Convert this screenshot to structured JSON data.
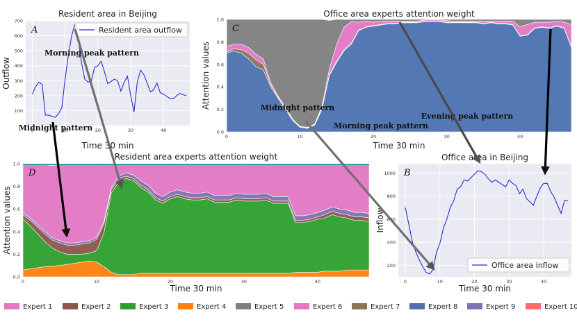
{
  "colors": {
    "expert1": "#e377c2",
    "expert2": "#8c564b",
    "expert3": "#2ca02c",
    "expert4": "#ff7f0e",
    "expert5": "#7f7f7f",
    "expert6": "#e377c2",
    "expert7": "#8c7358",
    "expert8": "#4c72b0",
    "expert9": "#8172b3",
    "expert10": "#ff6b6b",
    "line": "#2b2bd6",
    "panel_bg": "#eaeaf2"
  },
  "legend": {
    "labels": [
      "Expert 1",
      "Expert 2",
      "Expert 3",
      "Expert 4",
      "Expert 5",
      "Expert 6",
      "Expert 7",
      "Expert 8",
      "Expert 9",
      "Expert 10"
    ],
    "color_keys": [
      "expert1",
      "expert2",
      "expert3",
      "expert4",
      "expert5",
      "expert6",
      "expert7",
      "expert8",
      "expert9",
      "expert10"
    ]
  },
  "arrows": [
    {
      "from": "A",
      "to": "D"
    },
    {
      "from": "A",
      "to": "D"
    },
    {
      "from": "C",
      "to": "B"
    },
    {
      "from": "C",
      "to": "B"
    },
    {
      "from": "C",
      "to": "B"
    }
  ],
  "chart_data": [
    {
      "id": "A",
      "type": "line",
      "panel_label": "A",
      "title": "Resident area in Beijing",
      "xlabel": "Time 30 min",
      "ylabel": "Outflow",
      "xlim": [
        -2,
        48
      ],
      "ylim": [
        0,
        700
      ],
      "xticks": [
        0,
        10,
        20,
        30,
        40
      ],
      "yticks": [
        100,
        200,
        300,
        400,
        500,
        600,
        700
      ],
      "series": [
        {
          "name": "Resident area outflow",
          "x": [
            0,
            1,
            2,
            3,
            4,
            5,
            6,
            7,
            8,
            9,
            10,
            11,
            12,
            13,
            14,
            15,
            16,
            17,
            18,
            19,
            20,
            21,
            22,
            23,
            24,
            25,
            26,
            27,
            28,
            29,
            30,
            31,
            32,
            33,
            34,
            35,
            36,
            37,
            38,
            39,
            40,
            41,
            42,
            43,
            44,
            45,
            46,
            47
          ],
          "values": [
            210,
            260,
            290,
            275,
            70,
            70,
            62,
            55,
            80,
            120,
            310,
            470,
            600,
            680,
            580,
            420,
            310,
            290,
            300,
            390,
            400,
            430,
            360,
            280,
            295,
            310,
            300,
            230,
            290,
            330,
            200,
            90,
            290,
            370,
            340,
            285,
            225,
            240,
            285,
            220,
            210,
            195,
            180,
            180,
            200,
            215,
            205,
            200
          ]
        }
      ],
      "annotations": [
        {
          "text": "Morning peak pattern",
          "x": 16,
          "y": 485
        },
        {
          "text": "Midnight pattern",
          "x": 7,
          "y": 45
        }
      ]
    },
    {
      "id": "C",
      "type": "area",
      "panel_label": "C",
      "title": "Office area experts attention weight",
      "xlabel": "Time 30 min",
      "ylabel": "Attention values",
      "xlim": [
        0,
        47
      ],
      "ylim": [
        0,
        1.0
      ],
      "xticks": [
        0,
        10,
        20,
        30,
        40
      ],
      "yticks": [
        0.0,
        0.2,
        0.4,
        0.6,
        0.8,
        1.0
      ],
      "x": [
        0,
        1,
        2,
        3,
        4,
        5,
        6,
        7,
        8,
        9,
        10,
        11,
        12,
        13,
        14,
        15,
        16,
        17,
        18,
        19,
        20,
        21,
        22,
        23,
        24,
        25,
        26,
        27,
        28,
        29,
        30,
        31,
        32,
        33,
        34,
        35,
        36,
        37,
        38,
        39,
        40,
        41,
        42,
        43,
        44,
        45,
        46,
        47
      ],
      "series": [
        {
          "name": "Expert 8",
          "values": [
            0.7,
            0.72,
            0.7,
            0.65,
            0.58,
            0.55,
            0.4,
            0.3,
            0.2,
            0.1,
            0.04,
            0.03,
            0.06,
            0.2,
            0.5,
            0.62,
            0.72,
            0.78,
            0.9,
            0.93,
            0.94,
            0.95,
            0.96,
            0.96,
            0.97,
            0.97,
            0.97,
            0.98,
            0.98,
            0.98,
            0.97,
            0.97,
            0.97,
            0.97,
            0.97,
            0.96,
            0.97,
            0.96,
            0.96,
            0.95,
            0.85,
            0.86,
            0.92,
            0.93,
            0.92,
            0.94,
            0.92,
            0.75
          ]
        },
        {
          "name": "Expert 7",
          "values": [
            0.01,
            0.02,
            0.03,
            0.05,
            0.06,
            0.05,
            0.02,
            0.01,
            0.01,
            0.01,
            0.005,
            0.005,
            0.005,
            0.01,
            0.01,
            0.01,
            0.01,
            0.01,
            0.005,
            0.005,
            0.005,
            0.005,
            0.005,
            0.005,
            0.005,
            0.005,
            0.005,
            0.005,
            0.005,
            0.005,
            0.005,
            0.005,
            0.005,
            0.005,
            0.005,
            0.005,
            0.005,
            0.005,
            0.005,
            0.005,
            0.005,
            0.005,
            0.005,
            0.005,
            0.005,
            0.005,
            0.005,
            0.005
          ]
        },
        {
          "name": "Expert 6",
          "values": [
            0.05,
            0.04,
            0.05,
            0.05,
            0.05,
            0.05,
            0.02,
            0.01,
            0.01,
            0.005,
            0.005,
            0.005,
            0.005,
            0.02,
            0.05,
            0.15,
            0.2,
            0.19,
            0.07,
            0.05,
            0.03,
            0.03,
            0.02,
            0.02,
            0.01,
            0.01,
            0.01,
            0.01,
            0.01,
            0.01,
            0.015,
            0.01,
            0.01,
            0.01,
            0.01,
            0.02,
            0.01,
            0.02,
            0.02,
            0.03,
            0.08,
            0.09,
            0.05,
            0.04,
            0.05,
            0.04,
            0.05,
            0.2
          ]
        },
        {
          "name": "Expert 5",
          "values": [
            0.24,
            0.22,
            0.22,
            0.25,
            0.31,
            0.35,
            0.56,
            0.68,
            0.78,
            0.885,
            0.95,
            0.96,
            0.93,
            0.77,
            0.43,
            0.22,
            0.07,
            0.02,
            0.025,
            0.015,
            0.025,
            0.015,
            0.015,
            0.015,
            0.015,
            0.015,
            0.015,
            0.005,
            0.005,
            0.005,
            0.01,
            0.015,
            0.015,
            0.015,
            0.015,
            0.015,
            0.015,
            0.015,
            0.015,
            0.015,
            0.065,
            0.045,
            0.025,
            0.025,
            0.025,
            0.015,
            0.025,
            0.045
          ]
        }
      ],
      "annotations": [
        {
          "text": "Midnight pattern",
          "x": 14.5,
          "y": 0.215
        },
        {
          "text": "Morning peak pattern",
          "x": 27,
          "y": 0.055
        },
        {
          "text": "Evening peak pattern",
          "x": 41,
          "y": 0.14
        }
      ]
    },
    {
      "id": "D",
      "type": "area",
      "panel_label": "D",
      "title": "Resident area experts attention weight",
      "xlabel": "Time 30 min",
      "ylabel": "Attention values",
      "xlim": [
        0,
        47
      ],
      "ylim": [
        0,
        1.0
      ],
      "xticks": [
        0,
        10,
        20,
        30,
        40
      ],
      "yticks": [
        0.0,
        0.2,
        0.4,
        0.6,
        0.8,
        1.0
      ],
      "x": [
        0,
        1,
        2,
        3,
        4,
        5,
        6,
        7,
        8,
        9,
        10,
        11,
        12,
        13,
        14,
        15,
        16,
        17,
        18,
        19,
        20,
        21,
        22,
        23,
        24,
        25,
        26,
        27,
        28,
        29,
        30,
        31,
        32,
        33,
        34,
        35,
        36,
        37,
        38,
        39,
        40,
        41,
        42,
        43,
        44,
        45,
        46,
        47
      ],
      "series": [
        {
          "name": "Expert 4",
          "values": [
            0.06,
            0.07,
            0.08,
            0.09,
            0.095,
            0.1,
            0.11,
            0.12,
            0.13,
            0.14,
            0.13,
            0.09,
            0.04,
            0.02,
            0.02,
            0.02,
            0.03,
            0.03,
            0.03,
            0.03,
            0.03,
            0.03,
            0.03,
            0.03,
            0.03,
            0.03,
            0.03,
            0.03,
            0.03,
            0.03,
            0.03,
            0.03,
            0.03,
            0.03,
            0.03,
            0.03,
            0.03,
            0.04,
            0.04,
            0.04,
            0.04,
            0.05,
            0.05,
            0.05,
            0.06,
            0.06,
            0.06,
            0.06
          ]
        },
        {
          "name": "Expert 3",
          "values": [
            0.45,
            0.38,
            0.3,
            0.22,
            0.16,
            0.12,
            0.09,
            0.08,
            0.07,
            0.07,
            0.1,
            0.3,
            0.7,
            0.82,
            0.85,
            0.83,
            0.76,
            0.72,
            0.65,
            0.62,
            0.66,
            0.68,
            0.66,
            0.65,
            0.65,
            0.66,
            0.63,
            0.63,
            0.63,
            0.65,
            0.64,
            0.64,
            0.64,
            0.65,
            0.62,
            0.62,
            0.62,
            0.44,
            0.44,
            0.45,
            0.47,
            0.47,
            0.5,
            0.48,
            0.46,
            0.44,
            0.44,
            0.43
          ]
        },
        {
          "name": "Expert 2",
          "values": [
            0.04,
            0.05,
            0.06,
            0.07,
            0.07,
            0.08,
            0.08,
            0.08,
            0.09,
            0.09,
            0.1,
            0.08,
            0.03,
            0.03,
            0.02,
            0.02,
            0.02,
            0.02,
            0.02,
            0.02,
            0.02,
            0.02,
            0.02,
            0.02,
            0.02,
            0.02,
            0.02,
            0.02,
            0.02,
            0.02,
            0.02,
            0.02,
            0.02,
            0.02,
            0.02,
            0.02,
            0.02,
            0.02,
            0.02,
            0.02,
            0.02,
            0.03,
            0.03,
            0.03,
            0.03,
            0.03,
            0.03,
            0.03
          ]
        },
        {
          "name": "Expert 9",
          "values": [
            0.02,
            0.02,
            0.02,
            0.02,
            0.02,
            0.02,
            0.02,
            0.02,
            0.02,
            0.02,
            0.02,
            0.02,
            0.02,
            0.02,
            0.03,
            0.03,
            0.04,
            0.04,
            0.04,
            0.04,
            0.04,
            0.04,
            0.04,
            0.04,
            0.04,
            0.04,
            0.04,
            0.04,
            0.04,
            0.04,
            0.04,
            0.04,
            0.04,
            0.04,
            0.04,
            0.04,
            0.04,
            0.04,
            0.04,
            0.04,
            0.04,
            0.04,
            0.04,
            0.04,
            0.04,
            0.04,
            0.04,
            0.04
          ]
        },
        {
          "name": "Expert 1",
          "values": [
            0.42,
            0.47,
            0.53,
            0.59,
            0.64,
            0.67,
            0.69,
            0.69,
            0.68,
            0.67,
            0.64,
            0.5,
            0.2,
            0.12,
            0.08,
            0.1,
            0.14,
            0.18,
            0.25,
            0.28,
            0.24,
            0.22,
            0.24,
            0.25,
            0.25,
            0.24,
            0.27,
            0.27,
            0.27,
            0.25,
            0.26,
            0.26,
            0.26,
            0.25,
            0.28,
            0.28,
            0.28,
            0.45,
            0.45,
            0.44,
            0.42,
            0.4,
            0.37,
            0.39,
            0.4,
            0.42,
            0.42,
            0.43
          ]
        },
        {
          "name": "Expert 10",
          "values": [
            0.01,
            0.01,
            0.01,
            0.01,
            0.01,
            0.01,
            0.01,
            0.01,
            0.01,
            0.01,
            0.01,
            0.01,
            0.01,
            0.01,
            0.01,
            0.01,
            0.01,
            0.01,
            0.01,
            0.01,
            0.01,
            0.01,
            0.01,
            0.01,
            0.01,
            0.01,
            0.01,
            0.01,
            0.01,
            0.01,
            0.01,
            0.01,
            0.01,
            0.01,
            0.01,
            0.01,
            0.01,
            0.01,
            0.01,
            0.01,
            0.01,
            0.01,
            0.01,
            0.01,
            0.01,
            0.01,
            0.01,
            0.01
          ]
        }
      ],
      "annotations": []
    },
    {
      "id": "B",
      "type": "line",
      "panel_label": "B",
      "title": "Office area in Beijing",
      "xlabel": "Time 30 min",
      "ylabel": "Inflow",
      "xlim": [
        -2,
        48
      ],
      "ylim": [
        100,
        1080
      ],
      "xticks": [
        0,
        10,
        20,
        30,
        40
      ],
      "yticks": [
        200,
        400,
        600,
        800,
        1000
      ],
      "series": [
        {
          "name": "Office area inflow",
          "x": [
            0,
            1,
            2,
            3,
            4,
            5,
            6,
            7,
            8,
            9,
            10,
            11,
            12,
            13,
            14,
            15,
            16,
            17,
            18,
            19,
            20,
            21,
            22,
            23,
            24,
            25,
            26,
            27,
            28,
            29,
            30,
            31,
            32,
            33,
            34,
            35,
            36,
            37,
            38,
            39,
            40,
            41,
            42,
            43,
            44,
            45,
            46,
            47
          ],
          "values": [
            700,
            560,
            410,
            320,
            250,
            190,
            140,
            125,
            160,
            310,
            390,
            520,
            600,
            700,
            760,
            860,
            880,
            940,
            930,
            960,
            990,
            1020,
            1010,
            990,
            950,
            920,
            940,
            920,
            900,
            880,
            940,
            910,
            890,
            820,
            860,
            780,
            750,
            720,
            800,
            870,
            910,
            910,
            840,
            790,
            720,
            650,
            760,
            760
          ]
        }
      ],
      "annotations": []
    }
  ]
}
